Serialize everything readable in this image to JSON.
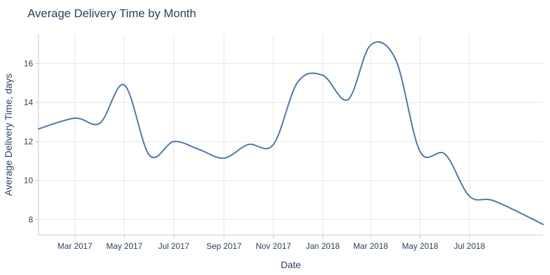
{
  "chart_data": {
    "type": "line",
    "title": "Average Delivery Time by Month",
    "xlabel": "Date",
    "ylabel": "Average Delivery Time, days",
    "x_type": "date",
    "xlim": [
      "2017-01-15",
      "2018-09-30"
    ],
    "ylim": [
      7.2,
      17.5
    ],
    "grid": true,
    "x_ticks": [
      {
        "date": "2017-03-01",
        "label": "Mar 2017"
      },
      {
        "date": "2017-05-01",
        "label": "May 2017"
      },
      {
        "date": "2017-07-01",
        "label": "Jul 2017"
      },
      {
        "date": "2017-09-01",
        "label": "Sep 2017"
      },
      {
        "date": "2017-11-01",
        "label": "Nov 2017"
      },
      {
        "date": "2018-01-01",
        "label": "Jan 2018"
      },
      {
        "date": "2018-03-01",
        "label": "Mar 2018"
      },
      {
        "date": "2018-05-01",
        "label": "May 2018"
      },
      {
        "date": "2018-07-01",
        "label": "Jul 2018"
      }
    ],
    "y_ticks": [
      8,
      10,
      12,
      14,
      16
    ],
    "series": [
      {
        "color": "#4c78a8",
        "points": [
          {
            "x": "2017-01-15",
            "y": 12.65
          },
          {
            "x": "2017-03-01",
            "y": 13.2
          },
          {
            "x": "2017-04-01",
            "y": 12.95
          },
          {
            "x": "2017-05-01",
            "y": 14.9
          },
          {
            "x": "2017-06-01",
            "y": 11.3
          },
          {
            "x": "2017-07-01",
            "y": 12.0
          },
          {
            "x": "2017-08-01",
            "y": 11.6
          },
          {
            "x": "2017-09-01",
            "y": 11.15
          },
          {
            "x": "2017-10-01",
            "y": 11.85
          },
          {
            "x": "2017-11-01",
            "y": 11.85
          },
          {
            "x": "2017-12-01",
            "y": 15.05
          },
          {
            "x": "2018-01-01",
            "y": 15.4
          },
          {
            "x": "2018-02-01",
            "y": 14.15
          },
          {
            "x": "2018-03-01",
            "y": 16.95
          },
          {
            "x": "2018-04-01",
            "y": 16.2
          },
          {
            "x": "2018-05-01",
            "y": 11.5
          },
          {
            "x": "2018-06-01",
            "y": 11.35
          },
          {
            "x": "2018-07-01",
            "y": 9.2
          },
          {
            "x": "2018-08-01",
            "y": 8.95
          },
          {
            "x": "2018-09-30",
            "y": 7.75
          }
        ]
      }
    ]
  }
}
